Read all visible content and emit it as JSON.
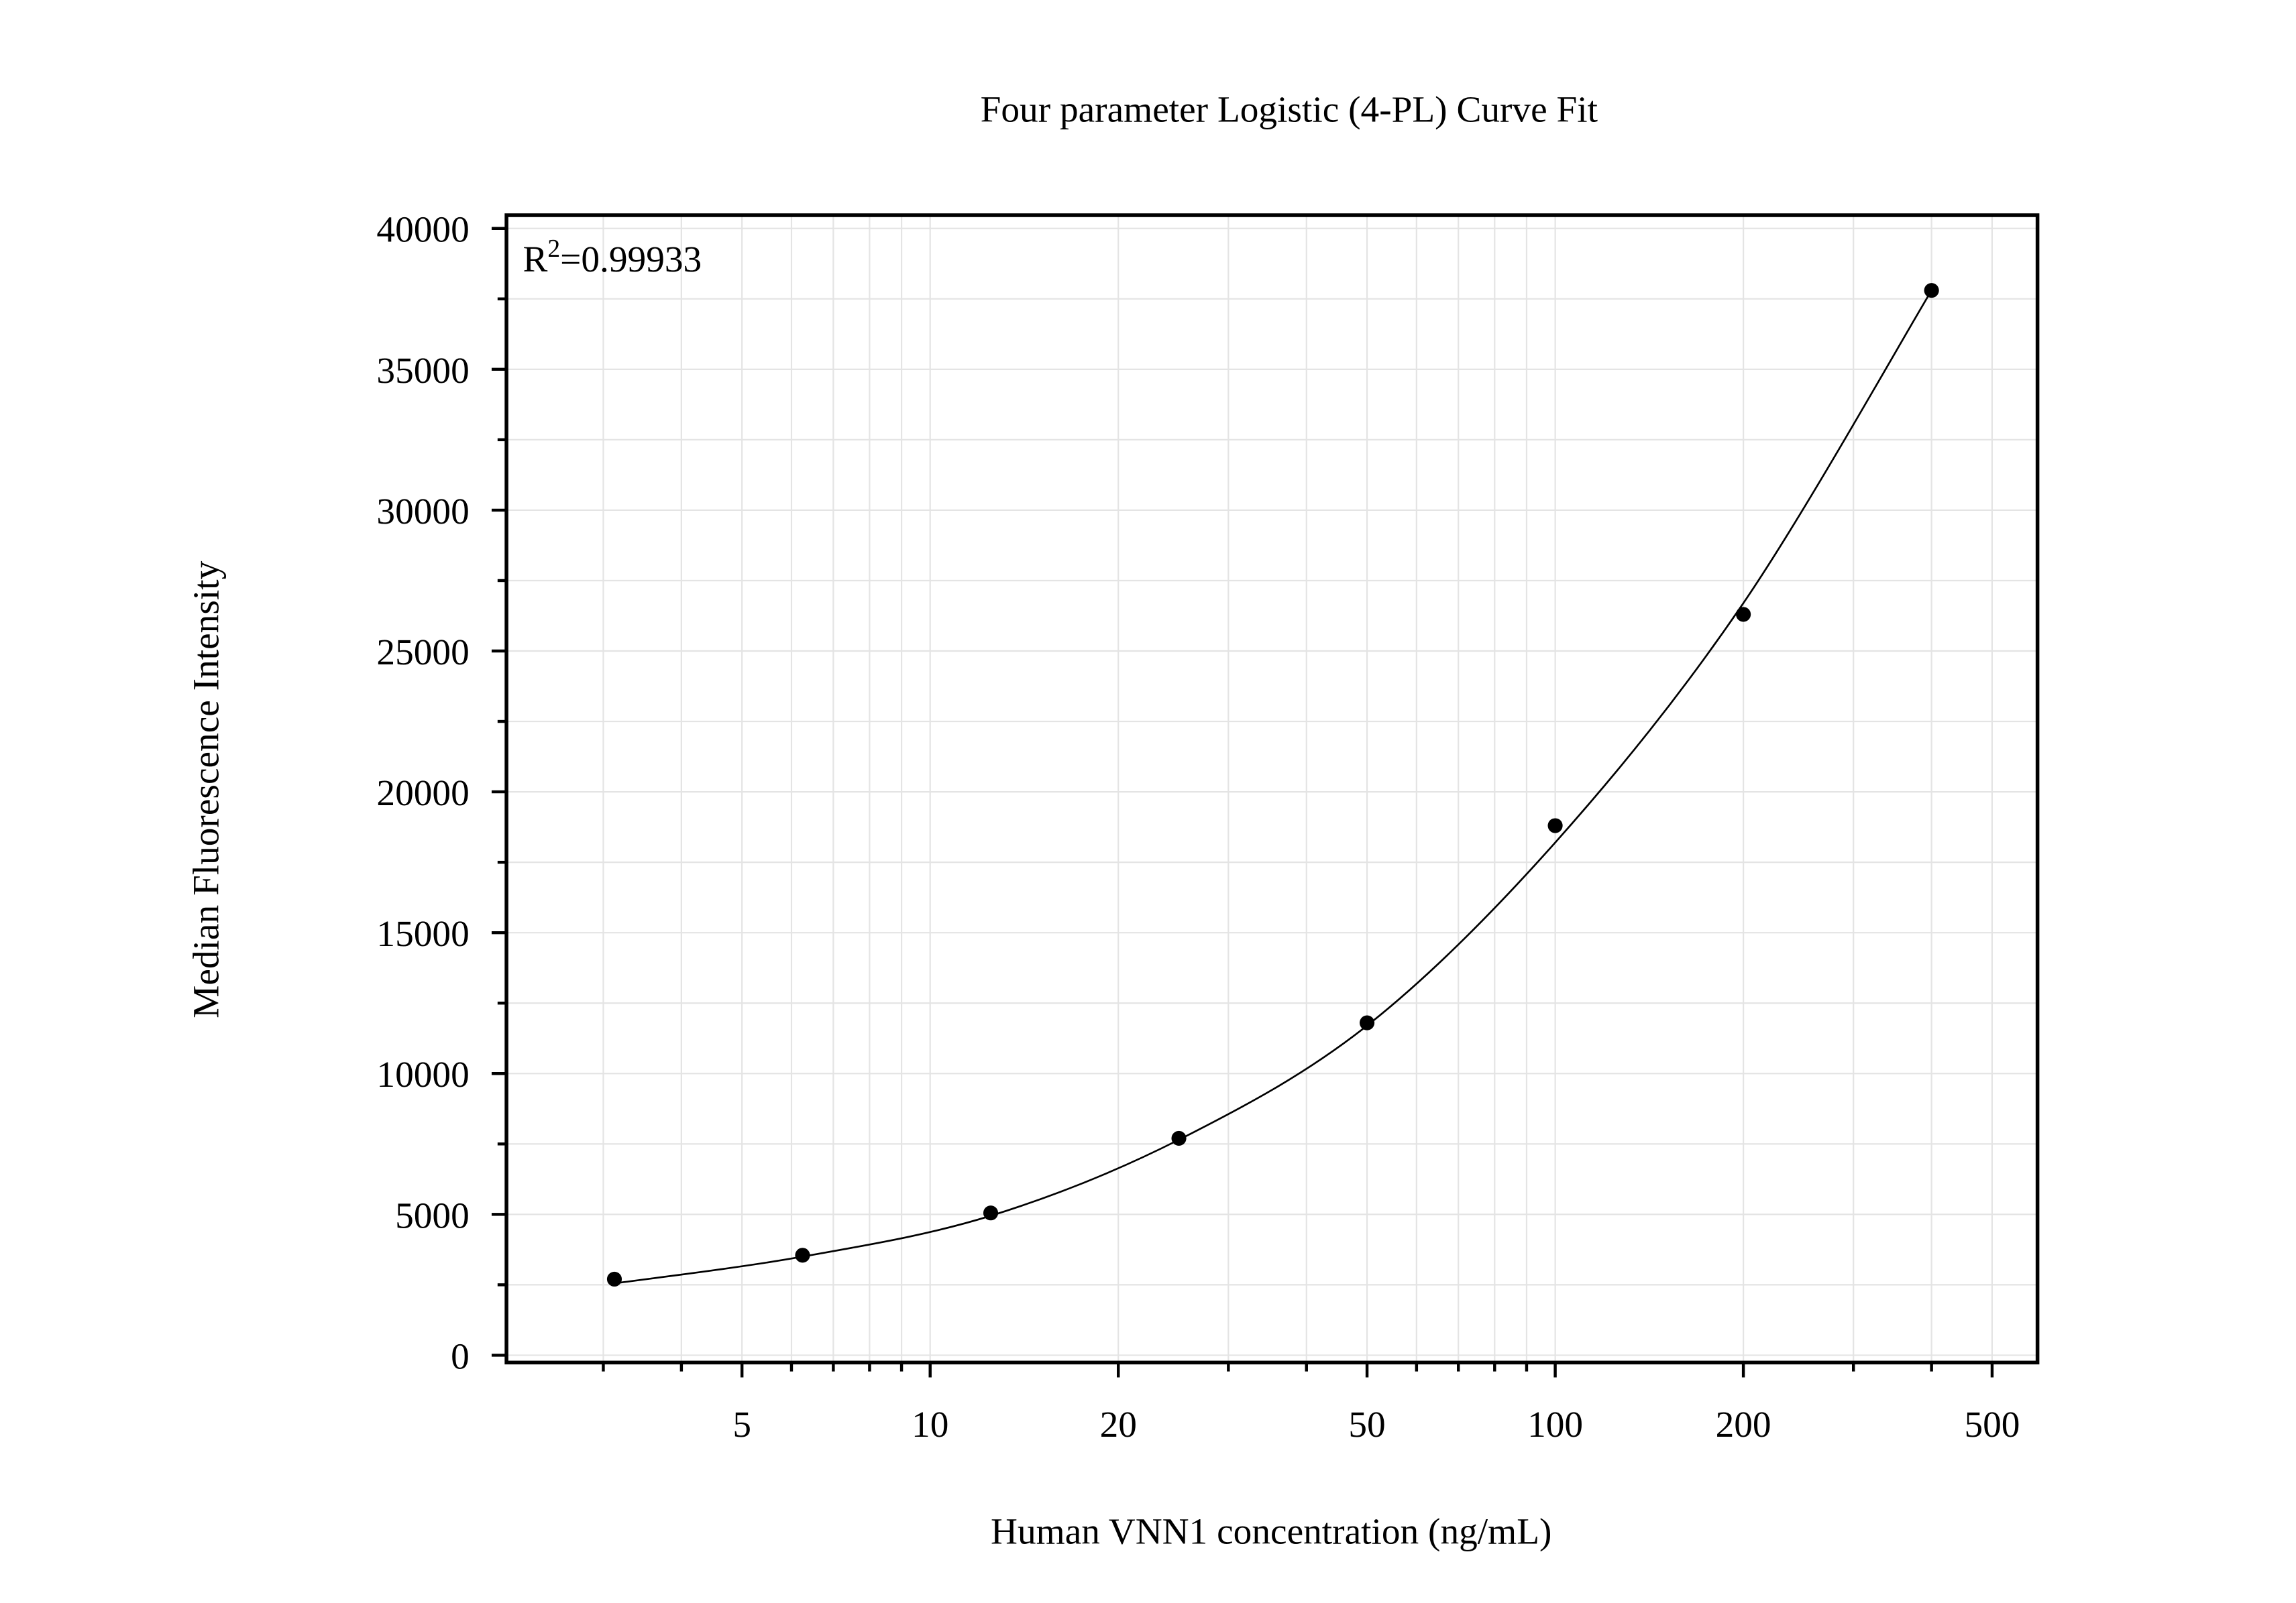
{
  "chart_data": {
    "type": "scatter",
    "title": "Four parameter Logistic (4-PL) Curve Fit",
    "x_label": "Human VNN1 concentration (ng/mL)",
    "y_label": "Median Fluorescence Intensity",
    "annotation": {
      "base": "R",
      "superscript": "2",
      "text": "=0.99933"
    },
    "x": [
      3.125,
      6.25,
      12.5,
      25,
      50,
      100,
      200,
      400
    ],
    "values": [
      2700,
      3550,
      5050,
      7700,
      11800,
      18800,
      26300,
      37800
    ],
    "color": "#000000",
    "fit": {
      "x": [
        3.125,
        6.25,
        12.5,
        25,
        50,
        100,
        200,
        400
      ],
      "values": [
        2550,
        3500,
        4950,
        7650,
        11700,
        18200,
        26700,
        37800
      ],
      "color": "#000000"
    },
    "x_log": true,
    "xlim": [
      2.1,
      591
    ],
    "xticks": [
      5,
      10,
      20,
      50,
      100,
      200,
      500
    ],
    "xminor": [
      3,
      4,
      6,
      7,
      8,
      9,
      30,
      40,
      60,
      70,
      80,
      90,
      300,
      400
    ],
    "ylim": [
      -260,
      40470
    ],
    "yticks": [
      0,
      5000,
      10000,
      15000,
      20000,
      25000,
      30000,
      35000,
      40000
    ],
    "yminor": [
      2500,
      7500,
      12500,
      17500,
      22500,
      27500,
      32500,
      37500
    ],
    "grid": true
  }
}
